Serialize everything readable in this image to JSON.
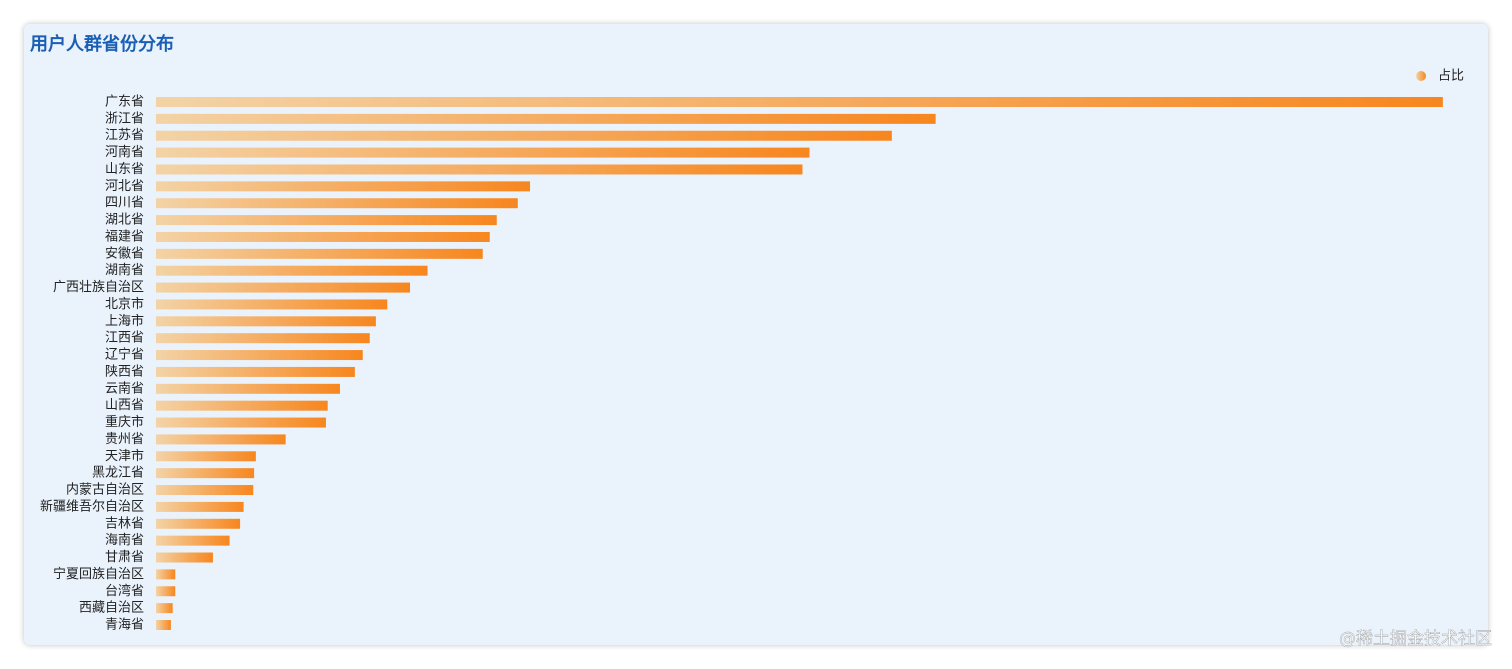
{
  "chart_data": {
    "type": "hbar",
    "title": "用户人群省份分布",
    "categories": [
      "广东省",
      "浙江省",
      "江苏省",
      "河南省",
      "山东省",
      "河北省",
      "四川省",
      "湖北省",
      "福建省",
      "安徽省",
      "湖南省",
      "广西壮族自治区",
      "北京市",
      "上海市",
      "江西省",
      "辽宁省",
      "陕西省",
      "云南省",
      "山西省",
      "重庆市",
      "贵州省",
      "天津市",
      "黑龙江省",
      "内蒙古自治区",
      "新疆维吾尔自治区",
      "吉林省",
      "海南省",
      "甘肃省",
      "宁夏回族自治区",
      "台湾省",
      "西藏自治区",
      "青海省"
    ],
    "series": [
      {
        "name": "占比",
        "color": "#f7861e",
        "values": [
          14.69,
          8.9,
          8.4,
          7.46,
          7.38,
          4.27,
          4.13,
          3.89,
          3.81,
          3.73,
          3.1,
          2.9,
          2.64,
          2.51,
          2.44,
          2.36,
          2.27,
          2.1,
          1.96,
          1.94,
          1.48,
          1.14,
          1.12,
          1.11,
          1.0,
          0.96,
          0.84,
          0.65,
          0.22,
          0.22,
          0.19,
          0.17
        ]
      }
    ],
    "xlim": [
      0,
      15
    ],
    "legend": "top-right",
    "watermark": "@稀土掘金技术社区"
  }
}
